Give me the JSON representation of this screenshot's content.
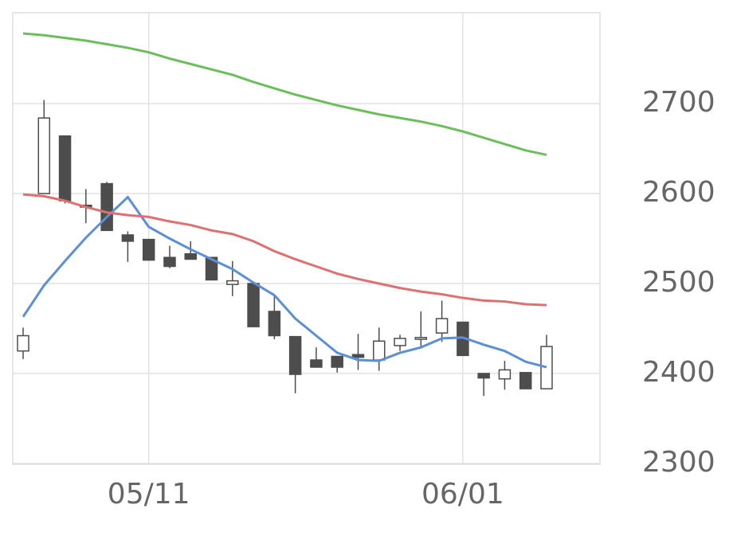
{
  "chart_data": {
    "type": "candlestick",
    "categories": [
      null,
      null,
      null,
      null,
      null,
      null,
      "05/11",
      null,
      null,
      null,
      null,
      null,
      null,
      null,
      null,
      null,
      null,
      null,
      null,
      null,
      null,
      "06/01",
      null,
      null,
      null,
      null
    ],
    "open": [
      2425,
      2600,
      2664,
      2587,
      2611,
      2554,
      2549,
      2529,
      2533,
      2529,
      2499,
      2500,
      2469,
      2441,
      2415,
      2419,
      2421,
      2415,
      2431,
      2438,
      2445,
      2457,
      2400,
      2394,
      2401,
      2383
    ],
    "high": [
      2451,
      2704,
      2664,
      2605,
      2613,
      2558,
      2549,
      2542,
      2547,
      2529,
      2525,
      2500,
      2486,
      2441,
      2429,
      2419,
      2444,
      2451,
      2443,
      2469,
      2481,
      2457,
      2400,
      2414,
      2401,
      2443
    ],
    "low": [
      2416,
      2600,
      2589,
      2567,
      2559,
      2524,
      2526,
      2517,
      2527,
      2504,
      2486,
      2452,
      2438,
      2378,
      2407,
      2401,
      2404,
      2403,
      2425,
      2428,
      2435,
      2420,
      2375,
      2382,
      2383,
      2383
    ],
    "close": [
      2442,
      2684,
      2592,
      2585,
      2559,
      2547,
      2526,
      2519,
      2527,
      2504,
      2503,
      2452,
      2442,
      2399,
      2407,
      2407,
      2418,
      2436,
      2439,
      2440,
      2461,
      2420,
      2395,
      2404,
      2383,
      2430
    ],
    "up_color": "#ffffff",
    "down_color": "#4d4d4d",
    "lines": [
      {
        "color": "#5b8fd6",
        "values": [
          2463,
          2498,
          2525,
          2551,
          2574,
          2596,
          2563,
          2550,
          2538,
          2527,
          2516,
          2501,
          2487,
          2461,
          2442,
          2423,
          2415,
          2414,
          2423,
          2429,
          2439,
          2440,
          2432,
          2425,
          2413,
          2407
        ]
      },
      {
        "color": "#e07070",
        "values": [
          2599,
          2597,
          2592,
          2585,
          2579,
          2576,
          2574,
          2569,
          2565,
          2559,
          2555,
          2547,
          2536,
          2527,
          2519,
          2511,
          2505,
          2500,
          2495,
          2491,
          2488,
          2484,
          2481,
          2480,
          2477,
          2476
        ]
      },
      {
        "color": "#6bbf5a",
        "values": [
          2778,
          2776,
          2773,
          2770,
          2766,
          2762,
          2757,
          2750,
          2744,
          2738,
          2732,
          2724,
          2717,
          2710,
          2704,
          2698,
          2693,
          2688,
          2684,
          2680,
          2675,
          2669,
          2662,
          2655,
          2648,
          2643
        ]
      }
    ],
    "ylim": [
      2299,
      2801
    ],
    "yticks": [
      2300,
      2400,
      2500,
      2600,
      2700
    ],
    "grid": true
  }
}
